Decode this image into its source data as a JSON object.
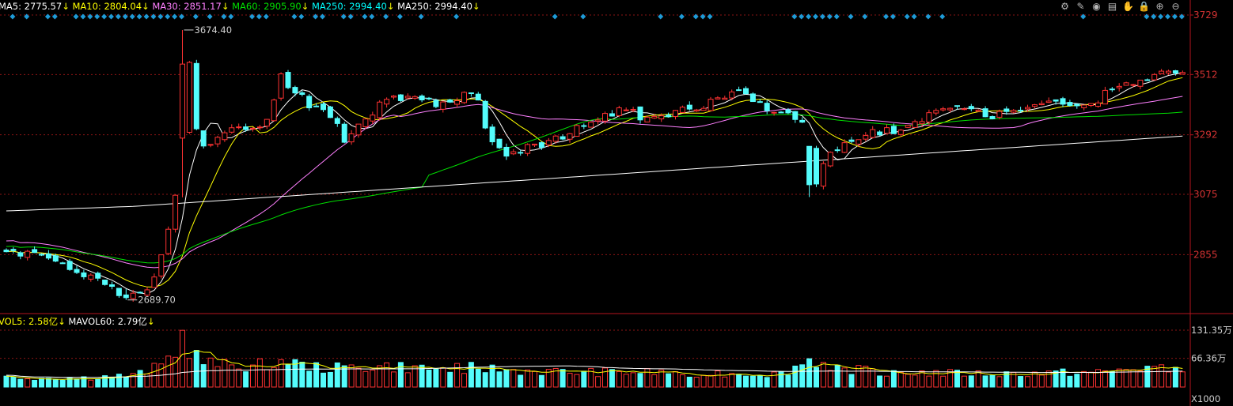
{
  "toolbar": {
    "icons": [
      {
        "name": "settings-icon",
        "glyph": "⚙"
      },
      {
        "name": "draw-icon",
        "glyph": "✎"
      },
      {
        "name": "eye-icon",
        "glyph": "◉"
      },
      {
        "name": "tools-icon",
        "glyph": "▤"
      },
      {
        "name": "hand-icon",
        "glyph": "✋"
      },
      {
        "name": "lock-icon",
        "glyph": "🔒"
      },
      {
        "name": "zoom-in-icon",
        "glyph": "⊕"
      },
      {
        "name": "zoom-out-icon",
        "glyph": "⊖"
      }
    ]
  },
  "chart_data": {
    "type": "candlestick",
    "price_legend": [
      {
        "text": "MA5: 2775.57",
        "arrow": "↓",
        "color": "#ffffff"
      },
      {
        "text": "MA10: 2804.04",
        "arrow": "↓",
        "color": "#ffff00"
      },
      {
        "text": "MA30: 2851.17",
        "arrow": "↓",
        "color": "#ff80ff"
      },
      {
        "text": "MA60: 2905.90",
        "arrow": "↓",
        "color": "#00e000"
      },
      {
        "text": "MA250: 2994.40",
        "arrow": "↓",
        "color": "#00ffff"
      },
      {
        "text": "MA250: 2994.40",
        "arrow": "↓",
        "color": "#ffffff"
      }
    ],
    "volume_legend": [
      {
        "text": "VOL5: 2.58亿",
        "arrow": "↓",
        "color": "#ffff00"
      },
      {
        "text": "MAVOL60: 2.79亿",
        "arrow": "↓",
        "color": "#ffffff"
      }
    ],
    "price_axis": {
      "ticks": [
        3729,
        3512,
        3292,
        3075,
        2855
      ],
      "labels": [
        "3729",
        "3512",
        "3292",
        "3075",
        "2855"
      ],
      "range": [
        2600,
        3740
      ]
    },
    "volume_axis": {
      "ticks": [
        131.35,
        66.36
      ],
      "labels": [
        "131.35万",
        "66.36万"
      ],
      "unit_label": "X1000",
      "range": [
        0,
        140
      ]
    },
    "annotations": [
      {
        "label": "3674.40",
        "value": 3674.4
      },
      {
        "label": "2689.70",
        "value": 2689.7
      }
    ],
    "colors": {
      "up": "#ff3232",
      "down": "#54fcfc",
      "grid": "#8c1414",
      "axis": "#b4141e",
      "signal": "#1e9bd7"
    },
    "close_keypoints": [
      [
        0,
        2875
      ],
      [
        5,
        2845
      ],
      [
        10,
        2800
      ],
      [
        15,
        2730
      ],
      [
        17,
        2700
      ],
      [
        19,
        2715
      ],
      [
        21,
        2760
      ],
      [
        22,
        2860
      ],
      [
        23,
        2960
      ],
      [
        24,
        3060
      ],
      [
        25,
        3280
      ],
      [
        26,
        3550
      ],
      [
        27,
        3300
      ],
      [
        28,
        3240
      ],
      [
        29,
        3260
      ],
      [
        31,
        3300
      ],
      [
        33,
        3330
      ],
      [
        35,
        3310
      ],
      [
        37,
        3350
      ],
      [
        38,
        3430
      ],
      [
        39,
        3500
      ],
      [
        40,
        3460
      ],
      [
        41,
        3450
      ],
      [
        43,
        3400
      ],
      [
        45,
        3380
      ],
      [
        47,
        3330
      ],
      [
        48,
        3270
      ],
      [
        49,
        3310
      ],
      [
        51,
        3350
      ],
      [
        53,
        3400
      ],
      [
        55,
        3440
      ],
      [
        57,
        3420
      ],
      [
        59,
        3420
      ],
      [
        61,
        3400
      ],
      [
        63,
        3420
      ],
      [
        65,
        3440
      ],
      [
        67,
        3420
      ],
      [
        68,
        3320
      ],
      [
        69,
        3260
      ],
      [
        71,
        3200
      ],
      [
        73,
        3240
      ],
      [
        75,
        3250
      ],
      [
        77,
        3270
      ],
      [
        79,
        3280
      ],
      [
        81,
        3320
      ],
      [
        83,
        3330
      ],
      [
        85,
        3360
      ],
      [
        87,
        3380
      ],
      [
        89,
        3370
      ],
      [
        91,
        3350
      ],
      [
        93,
        3360
      ],
      [
        95,
        3380
      ],
      [
        97,
        3390
      ],
      [
        99,
        3400
      ],
      [
        101,
        3420
      ],
      [
        103,
        3460
      ],
      [
        105,
        3430
      ],
      [
        107,
        3400
      ],
      [
        109,
        3380
      ],
      [
        111,
        3380
      ],
      [
        113,
        3340
      ],
      [
        114,
        3240
      ],
      [
        115,
        3120
      ],
      [
        116,
        3180
      ],
      [
        117,
        3230
      ],
      [
        119,
        3260
      ],
      [
        121,
        3280
      ],
      [
        123,
        3300
      ],
      [
        125,
        3310
      ],
      [
        127,
        3300
      ],
      [
        129,
        3330
      ],
      [
        131,
        3380
      ],
      [
        133,
        3400
      ],
      [
        135,
        3390
      ],
      [
        137,
        3390
      ],
      [
        139,
        3360
      ],
      [
        141,
        3370
      ],
      [
        143,
        3380
      ],
      [
        145,
        3400
      ],
      [
        147,
        3410
      ],
      [
        149,
        3400
      ],
      [
        151,
        3390
      ],
      [
        153,
        3390
      ],
      [
        155,
        3420
      ],
      [
        157,
        3460
      ],
      [
        159,
        3480
      ],
      [
        161,
        3500
      ],
      [
        163,
        3510
      ],
      [
        164,
        3515
      ]
    ],
    "spikes": [
      {
        "index": 25,
        "high": 3674.4,
        "low": 3250
      },
      {
        "index": 17,
        "high": 2730,
        "low": 2689.7
      },
      {
        "index": 114,
        "high": 3250,
        "low": 3065
      },
      {
        "index": 39,
        "high": 3520,
        "low": 3440
      }
    ],
    "volume_keypoints": [
      [
        0,
        22
      ],
      [
        10,
        20
      ],
      [
        14,
        24
      ],
      [
        18,
        26
      ],
      [
        22,
        48
      ],
      [
        24,
        85
      ],
      [
        25,
        131
      ],
      [
        26,
        90
      ],
      [
        27,
        70
      ],
      [
        28,
        58
      ],
      [
        30,
        50
      ],
      [
        34,
        48
      ],
      [
        38,
        60
      ],
      [
        40,
        62
      ],
      [
        42,
        48
      ],
      [
        46,
        42
      ],
      [
        50,
        46
      ],
      [
        54,
        48
      ],
      [
        58,
        44
      ],
      [
        62,
        40
      ],
      [
        66,
        46
      ],
      [
        68,
        42
      ],
      [
        72,
        38
      ],
      [
        80,
        34
      ],
      [
        90,
        34
      ],
      [
        100,
        32
      ],
      [
        110,
        30
      ],
      [
        114,
        62
      ],
      [
        116,
        56
      ],
      [
        118,
        44
      ],
      [
        124,
        36
      ],
      [
        132,
        32
      ],
      [
        140,
        30
      ],
      [
        148,
        32
      ],
      [
        156,
        34
      ],
      [
        162,
        46
      ],
      [
        164,
        40
      ]
    ],
    "signal_markers": [
      1,
      3,
      6,
      7,
      10,
      11,
      12,
      13,
      14,
      15,
      16,
      17,
      18,
      19,
      20,
      21,
      22,
      23,
      24,
      25,
      27,
      29,
      31,
      32,
      35,
      36,
      37,
      41,
      42,
      44,
      45,
      48,
      49,
      51,
      52,
      54,
      56,
      59,
      64,
      78,
      82,
      93,
      96,
      98,
      99,
      100,
      112,
      113,
      114,
      115,
      116,
      117,
      118,
      120,
      122,
      125,
      126,
      128,
      129,
      131,
      133,
      153,
      162,
      163,
      164,
      165,
      166,
      167
    ],
    "count": 168,
    "seed": 20240
  }
}
